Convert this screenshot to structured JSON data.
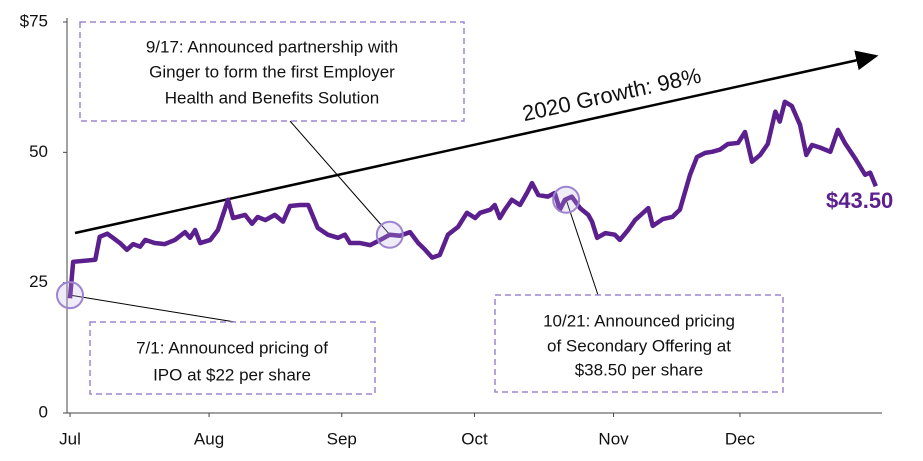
{
  "chart_data": {
    "type": "line",
    "growth_label": "2020 Growth: 98%",
    "last_label": "$43.50",
    "color": "#5b1f8e",
    "xlim": [
      0,
      128
    ],
    "xticks": [
      {
        "value": 0,
        "label": "Jul"
      },
      {
        "value": 22,
        "label": "Aug"
      },
      {
        "value": 43,
        "label": "Sep"
      },
      {
        "value": 64,
        "label": "Oct"
      },
      {
        "value": 86,
        "label": "Nov"
      },
      {
        "value": 106,
        "label": "Dec"
      }
    ],
    "ylim": [
      0,
      75
    ],
    "yticks": [
      0,
      25,
      50,
      {
        "value": 75,
        "label": "$75"
      }
    ],
    "x": [
      0,
      0.5,
      4,
      4.7,
      5.9,
      6.8,
      7.9,
      9,
      10,
      11.1,
      11.9,
      13.4,
      15,
      16.6,
      18.2,
      19,
      19.8,
      20.6,
      22.2,
      23.4,
      25,
      25.8,
      27.7,
      28.8,
      29.7,
      30.9,
      32.4,
      33.7,
      34.8,
      36.4,
      37.7,
      39.2,
      40.8,
      42.4,
      43.5,
      44.3,
      45.9,
      47.5,
      49.1,
      50.6,
      52.2,
      53.8,
      55.1,
      56.2,
      57.3,
      58.5,
      59.8,
      61.4,
      62.8,
      64.1,
      64.9,
      66.5,
      67.2,
      68,
      68.8,
      69.9,
      71.2,
      72.3,
      73.1,
      74.1,
      75.6,
      76.7,
      77.5,
      78.3,
      79.4,
      80.7,
      82,
      82.6,
      83.4,
      84.7,
      86.2,
      87,
      88.3,
      89.4,
      91.5,
      92.2,
      93.8,
      95.3,
      96.5,
      98.1,
      99.2,
      100.5,
      101.6,
      102.8,
      104.1,
      105.7,
      106.8,
      107.9,
      109.2,
      110.4,
      111.6,
      112.3,
      113.1,
      114.2,
      115.5,
      116.5,
      117.4,
      118.7,
      120.3,
      121.5,
      122.6,
      124.2,
      125.8,
      126.6,
      127.5
    ],
    "values": [
      22,
      29,
      29.4,
      33.8,
      34.4,
      33.6,
      32.6,
      31.3,
      32.4,
      31.9,
      33.2,
      32.6,
      32.4,
      33.2,
      34.7,
      33.6,
      35.1,
      32.6,
      33.2,
      35.1,
      40.9,
      37.4,
      38,
      36.3,
      37.6,
      37,
      38,
      36.7,
      39.7,
      39.9,
      39.9,
      35.5,
      34.2,
      33.6,
      34.2,
      32.6,
      32.6,
      32.2,
      33.2,
      34.2,
      34,
      34.7,
      32.6,
      31.3,
      29.8,
      30.3,
      34.2,
      35.7,
      38.4,
      37.4,
      38.4,
      39,
      39.9,
      37.4,
      39,
      40.9,
      39.9,
      42.2,
      44.1,
      41.8,
      41.5,
      42.2,
      39,
      40.9,
      41.5,
      39.3,
      38,
      36.7,
      33.6,
      34.5,
      34.2,
      33.2,
      35.1,
      37,
      39.3,
      35.9,
      37.2,
      37.6,
      39,
      45.7,
      49.1,
      49.9,
      50.1,
      50.5,
      51.6,
      51.8,
      53.9,
      48.2,
      49.5,
      51.6,
      57.8,
      55.9,
      59.7,
      58.9,
      55.3,
      49.5,
      51.4,
      50.9,
      50.1,
      54.3,
      51.8,
      48.9,
      45.7,
      46.1,
      43.5
    ],
    "annotations": [
      {
        "text": [
          "9/17: Announced partnership with",
          "Ginger to form the first Employer",
          "Health and Benefits Solution"
        ],
        "x": 50.6,
        "y": 34.2
      },
      {
        "text": [
          "7/1: Announced pricing of",
          "IPO at $22 per share"
        ],
        "x": 0,
        "y": 22.6
      },
      {
        "text": [
          "10/21: Announced pricing",
          "of Secondary Offering at",
          "$38.50 per share"
        ],
        "x": 78.5,
        "y": 40.9
      }
    ]
  }
}
